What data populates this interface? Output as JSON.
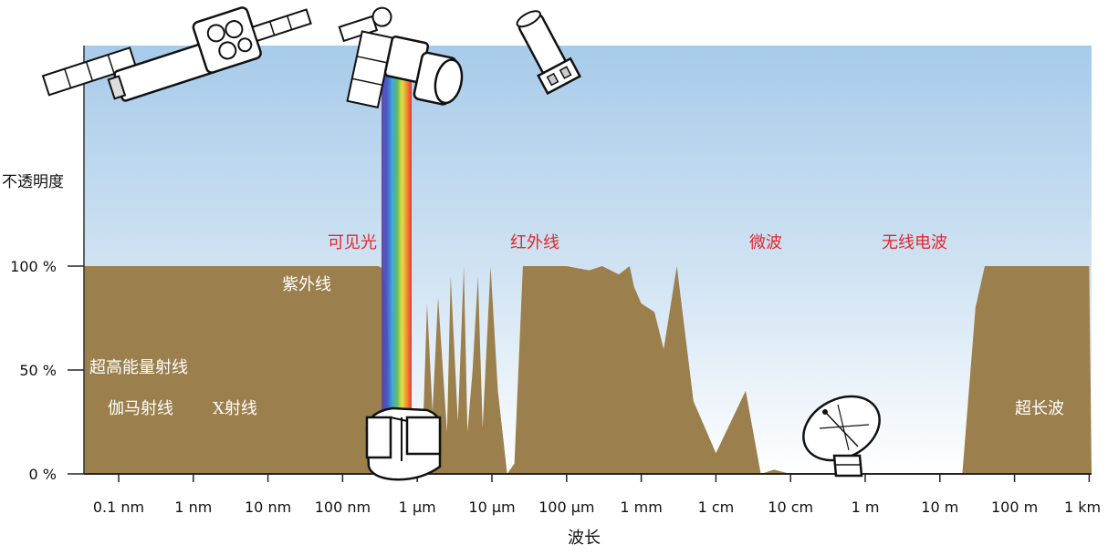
{
  "chart_data": {
    "type": "area",
    "title": "",
    "xlabel": "波长",
    "ylabel": "不透明度",
    "x_scale": "log",
    "x_ticks": [
      "0.1 nm",
      "1 nm",
      "10 nm",
      "100 nm",
      "1 μm",
      "10 μm",
      "100 μm",
      "1 mm",
      "1 cm",
      "10 cm",
      "1 m",
      "10 m",
      "100 m",
      "1 km"
    ],
    "y_ticks": [
      "100 %",
      "50 %",
      "0 %"
    ],
    "ylim": [
      0,
      100
    ],
    "x_unit": "m",
    "series": [
      {
        "x": [
          1e-11,
          3e-07,
          3.4e-07,
          3.8e-07,
          4e-07,
          5e-07,
          8e-07,
          1.2e-06,
          1.35e-06,
          1.6e-06,
          1.9e-06,
          2.5e-06,
          2.8e-06,
          3.5e-06,
          4.2e-06,
          4.7e-06,
          5.5e-06,
          6.5e-06,
          7.5e-06,
          9.6e-06,
          1.2e-05,
          1.6e-05,
          2e-05,
          2.6e-05,
          0.0001,
          0.0002,
          0.0003,
          0.0005,
          0.0007,
          0.0008,
          0.001,
          0.0015,
          0.002,
          0.003,
          0.005,
          0.01,
          0.025,
          0.04,
          0.06,
          0.1,
          10.0,
          20.0,
          30.0,
          40.0,
          1000.0
        ],
        "values": [
          100,
          100,
          99,
          90,
          70,
          25,
          22,
          25,
          82,
          30,
          85,
          20,
          95,
          25,
          100,
          20,
          50,
          95,
          22,
          100,
          40,
          0,
          5,
          100,
          100,
          98,
          100,
          96,
          100,
          90,
          82,
          78,
          60,
          100,
          35,
          10,
          40,
          0,
          2,
          0,
          0,
          0,
          80,
          100,
          100
        ]
      }
    ],
    "color": "#9b7f4c",
    "background_gradient": [
      "#a7cbea",
      "#ffffff"
    ]
  },
  "region_labels": {
    "visible": "可见光",
    "infrared": "红外线",
    "microwave": "微波",
    "radio": "无线电波",
    "ultraviolet": "紫外线",
    "high_energy": "超高能量射线",
    "gamma": "伽马射线",
    "xray": "X射线",
    "long_wave": "超长波"
  },
  "colors": {
    "highlight_label": "#e3272d",
    "atmosphere": "#9b7f4c",
    "sky_top": "#a7cbea"
  }
}
